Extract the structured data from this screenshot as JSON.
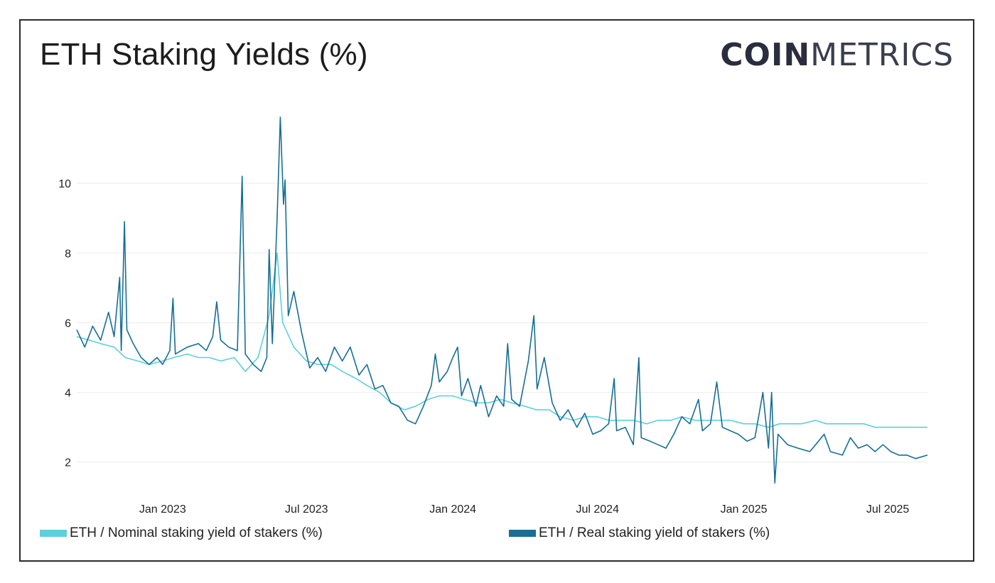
{
  "header": {
    "title": "ETH Staking Yields (%)",
    "logo_bold": "COIN",
    "logo_light": "METRICS"
  },
  "colors": {
    "nominal": "#5ecfdc",
    "real": "#176e96",
    "grid": "#ececec",
    "text": "#222222"
  },
  "legend": {
    "nominal_label": "ETH / Nominal staking yield of stakers (%)",
    "real_label": "ETH / Real staking yield of stakers (%)"
  },
  "chart_data": {
    "type": "line",
    "title": "ETH Staking Yields (%)",
    "xlabel": "",
    "ylabel": "",
    "x_range": [
      "2022-09-15",
      "2025-08-20"
    ],
    "ylim": [
      1.2,
      12
    ],
    "y_ticks": [
      2,
      4,
      6,
      8,
      10
    ],
    "x_ticks": [
      {
        "label": "Jan 2023",
        "date": "2023-01-01"
      },
      {
        "label": "Jul 2023",
        "date": "2023-07-01"
      },
      {
        "label": "Jan 2024",
        "date": "2024-01-01"
      },
      {
        "label": "Jul 2024",
        "date": "2024-07-01"
      },
      {
        "label": "Jan 2025",
        "date": "2025-01-01"
      },
      {
        "label": "Jul 2025",
        "date": "2025-07-01"
      }
    ],
    "grid": true,
    "legend_position": "bottom",
    "series": [
      {
        "name": "ETH / Nominal staking yield of stakers (%)",
        "color": "#5ecfdc",
        "points": [
          [
            "2022-09-15",
            5.6
          ],
          [
            "2022-10-01",
            5.5
          ],
          [
            "2022-10-15",
            5.4
          ],
          [
            "2022-11-01",
            5.3
          ],
          [
            "2022-11-15",
            5.0
          ],
          [
            "2022-12-01",
            4.9
          ],
          [
            "2022-12-15",
            4.8
          ],
          [
            "2023-01-01",
            4.9
          ],
          [
            "2023-01-15",
            5.0
          ],
          [
            "2023-02-01",
            5.1
          ],
          [
            "2023-02-15",
            5.0
          ],
          [
            "2023-03-01",
            5.0
          ],
          [
            "2023-03-15",
            4.9
          ],
          [
            "2023-04-01",
            5.0
          ],
          [
            "2023-04-15",
            4.6
          ],
          [
            "2023-05-01",
            5.0
          ],
          [
            "2023-05-15",
            6.2
          ],
          [
            "2023-05-25",
            8.0
          ],
          [
            "2023-06-01",
            6.0
          ],
          [
            "2023-06-15",
            5.3
          ],
          [
            "2023-07-01",
            4.9
          ],
          [
            "2023-07-15",
            4.8
          ],
          [
            "2023-08-01",
            4.8
          ],
          [
            "2023-08-15",
            4.6
          ],
          [
            "2023-09-01",
            4.4
          ],
          [
            "2023-09-15",
            4.2
          ],
          [
            "2023-10-01",
            4.0
          ],
          [
            "2023-10-15",
            3.7
          ],
          [
            "2023-11-01",
            3.5
          ],
          [
            "2023-11-15",
            3.6
          ],
          [
            "2023-12-01",
            3.8
          ],
          [
            "2023-12-15",
            3.9
          ],
          [
            "2024-01-01",
            3.9
          ],
          [
            "2024-01-15",
            3.8
          ],
          [
            "2024-02-01",
            3.7
          ],
          [
            "2024-02-15",
            3.7
          ],
          [
            "2024-03-01",
            3.8
          ],
          [
            "2024-03-15",
            3.7
          ],
          [
            "2024-04-01",
            3.6
          ],
          [
            "2024-04-15",
            3.5
          ],
          [
            "2024-05-01",
            3.5
          ],
          [
            "2024-05-15",
            3.3
          ],
          [
            "2024-06-01",
            3.2
          ],
          [
            "2024-06-15",
            3.3
          ],
          [
            "2024-07-01",
            3.3
          ],
          [
            "2024-07-15",
            3.2
          ],
          [
            "2024-08-01",
            3.2
          ],
          [
            "2024-08-15",
            3.2
          ],
          [
            "2024-09-01",
            3.1
          ],
          [
            "2024-09-15",
            3.2
          ],
          [
            "2024-10-01",
            3.2
          ],
          [
            "2024-10-15",
            3.3
          ],
          [
            "2024-11-01",
            3.2
          ],
          [
            "2024-11-15",
            3.2
          ],
          [
            "2024-12-01",
            3.2
          ],
          [
            "2024-12-15",
            3.2
          ],
          [
            "2025-01-01",
            3.1
          ],
          [
            "2025-01-15",
            3.1
          ],
          [
            "2025-02-01",
            3.0
          ],
          [
            "2025-02-15",
            3.1
          ],
          [
            "2025-03-01",
            3.1
          ],
          [
            "2025-03-15",
            3.1
          ],
          [
            "2025-04-01",
            3.2
          ],
          [
            "2025-04-15",
            3.1
          ],
          [
            "2025-05-01",
            3.1
          ],
          [
            "2025-05-15",
            3.1
          ],
          [
            "2025-06-01",
            3.1
          ],
          [
            "2025-06-15",
            3.0
          ],
          [
            "2025-07-01",
            3.0
          ],
          [
            "2025-07-15",
            3.0
          ],
          [
            "2025-08-01",
            3.0
          ],
          [
            "2025-08-20",
            3.0
          ]
        ]
      },
      {
        "name": "ETH / Real staking yield of stakers (%)",
        "color": "#176e96",
        "points": [
          [
            "2022-09-15",
            5.8
          ],
          [
            "2022-09-25",
            5.3
          ],
          [
            "2022-10-05",
            5.9
          ],
          [
            "2022-10-15",
            5.5
          ],
          [
            "2022-10-25",
            6.3
          ],
          [
            "2022-11-01",
            5.6
          ],
          [
            "2022-11-08",
            7.3
          ],
          [
            "2022-11-10",
            5.2
          ],
          [
            "2022-11-14",
            8.9
          ],
          [
            "2022-11-17",
            5.8
          ],
          [
            "2022-11-25",
            5.4
          ],
          [
            "2022-12-05",
            5.0
          ],
          [
            "2022-12-15",
            4.8
          ],
          [
            "2022-12-25",
            5.0
          ],
          [
            "2023-01-01",
            4.8
          ],
          [
            "2023-01-10",
            5.2
          ],
          [
            "2023-01-14",
            6.7
          ],
          [
            "2023-01-17",
            5.1
          ],
          [
            "2023-02-01",
            5.3
          ],
          [
            "2023-02-15",
            5.4
          ],
          [
            "2023-02-25",
            5.2
          ],
          [
            "2023-03-05",
            5.6
          ],
          [
            "2023-03-10",
            6.6
          ],
          [
            "2023-03-15",
            5.5
          ],
          [
            "2023-03-25",
            5.3
          ],
          [
            "2023-04-05",
            5.2
          ],
          [
            "2023-04-11",
            10.2
          ],
          [
            "2023-04-15",
            5.1
          ],
          [
            "2023-04-25",
            4.8
          ],
          [
            "2023-05-05",
            4.6
          ],
          [
            "2023-05-12",
            5.0
          ],
          [
            "2023-05-15",
            8.1
          ],
          [
            "2023-05-19",
            5.4
          ],
          [
            "2023-05-25",
            9.0
          ],
          [
            "2023-05-29",
            11.9
          ],
          [
            "2023-06-02",
            9.4
          ],
          [
            "2023-06-04",
            10.1
          ],
          [
            "2023-06-08",
            6.2
          ],
          [
            "2023-06-15",
            6.9
          ],
          [
            "2023-06-25",
            5.7
          ],
          [
            "2023-07-05",
            4.7
          ],
          [
            "2023-07-15",
            5.0
          ],
          [
            "2023-07-25",
            4.6
          ],
          [
            "2023-08-05",
            5.3
          ],
          [
            "2023-08-15",
            4.9
          ],
          [
            "2023-08-25",
            5.3
          ],
          [
            "2023-09-05",
            4.5
          ],
          [
            "2023-09-15",
            4.8
          ],
          [
            "2023-09-25",
            4.1
          ],
          [
            "2023-10-05",
            4.2
          ],
          [
            "2023-10-15",
            3.7
          ],
          [
            "2023-10-25",
            3.6
          ],
          [
            "2023-11-05",
            3.2
          ],
          [
            "2023-11-15",
            3.1
          ],
          [
            "2023-11-25",
            3.6
          ],
          [
            "2023-12-05",
            4.2
          ],
          [
            "2023-12-10",
            5.1
          ],
          [
            "2023-12-15",
            4.3
          ],
          [
            "2023-12-25",
            4.6
          ],
          [
            "2024-01-01",
            5.0
          ],
          [
            "2024-01-07",
            5.3
          ],
          [
            "2024-01-12",
            3.9
          ],
          [
            "2024-01-20",
            4.4
          ],
          [
            "2024-01-30",
            3.6
          ],
          [
            "2024-02-05",
            4.2
          ],
          [
            "2024-02-15",
            3.3
          ],
          [
            "2024-02-25",
            3.9
          ],
          [
            "2024-03-05",
            3.6
          ],
          [
            "2024-03-10",
            5.4
          ],
          [
            "2024-03-15",
            3.8
          ],
          [
            "2024-03-25",
            3.6
          ],
          [
            "2024-04-05",
            4.9
          ],
          [
            "2024-04-12",
            6.2
          ],
          [
            "2024-04-16",
            4.1
          ],
          [
            "2024-04-25",
            5.0
          ],
          [
            "2024-05-05",
            3.7
          ],
          [
            "2024-05-15",
            3.2
          ],
          [
            "2024-05-25",
            3.5
          ],
          [
            "2024-06-05",
            3.0
          ],
          [
            "2024-06-15",
            3.4
          ],
          [
            "2024-06-25",
            2.8
          ],
          [
            "2024-07-05",
            2.9
          ],
          [
            "2024-07-15",
            3.1
          ],
          [
            "2024-07-22",
            4.4
          ],
          [
            "2024-07-25",
            2.9
          ],
          [
            "2024-08-05",
            3.0
          ],
          [
            "2024-08-15",
            2.5
          ],
          [
            "2024-08-22",
            5.0
          ],
          [
            "2024-08-25",
            2.7
          ],
          [
            "2024-09-05",
            2.6
          ],
          [
            "2024-09-15",
            2.5
          ],
          [
            "2024-09-25",
            2.4
          ],
          [
            "2024-10-05",
            2.8
          ],
          [
            "2024-10-15",
            3.3
          ],
          [
            "2024-10-25",
            3.1
          ],
          [
            "2024-11-05",
            3.8
          ],
          [
            "2024-11-10",
            2.9
          ],
          [
            "2024-11-20",
            3.1
          ],
          [
            "2024-11-28",
            4.3
          ],
          [
            "2024-12-05",
            3.0
          ],
          [
            "2024-12-15",
            2.9
          ],
          [
            "2024-12-25",
            2.8
          ],
          [
            "2025-01-05",
            2.6
          ],
          [
            "2025-01-15",
            2.7
          ],
          [
            "2025-01-25",
            4.0
          ],
          [
            "2025-02-01",
            2.4
          ],
          [
            "2025-02-05",
            4.0
          ],
          [
            "2025-02-09",
            1.4
          ],
          [
            "2025-02-13",
            2.8
          ],
          [
            "2025-02-25",
            2.5
          ],
          [
            "2025-03-10",
            2.4
          ],
          [
            "2025-03-25",
            2.3
          ],
          [
            "2025-04-05",
            2.6
          ],
          [
            "2025-04-12",
            2.8
          ],
          [
            "2025-04-20",
            2.3
          ],
          [
            "2025-05-05",
            2.2
          ],
          [
            "2025-05-15",
            2.7
          ],
          [
            "2025-05-25",
            2.4
          ],
          [
            "2025-06-05",
            2.5
          ],
          [
            "2025-06-15",
            2.3
          ],
          [
            "2025-06-25",
            2.5
          ],
          [
            "2025-07-05",
            2.3
          ],
          [
            "2025-07-15",
            2.2
          ],
          [
            "2025-07-25",
            2.2
          ],
          [
            "2025-08-05",
            2.1
          ],
          [
            "2025-08-20",
            2.2
          ]
        ]
      }
    ]
  }
}
